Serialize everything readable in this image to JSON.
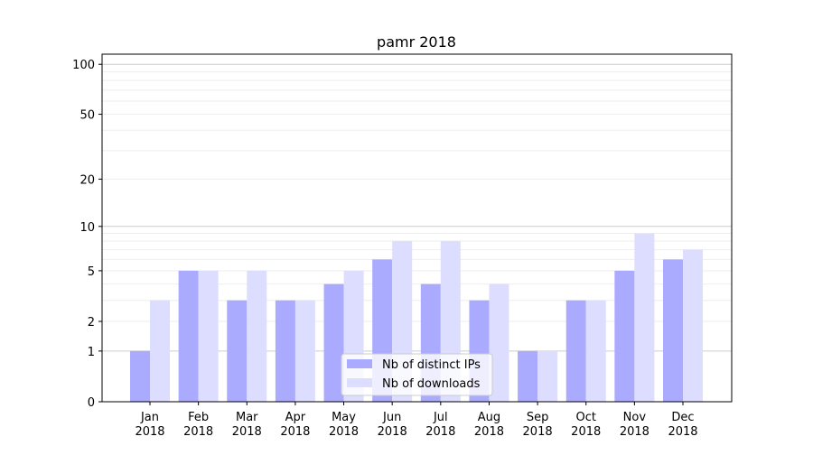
{
  "chart_data": {
    "type": "bar",
    "title": "pamr 2018",
    "xlabel": "",
    "ylabel": "",
    "yscale": "log(1+y)",
    "ylim": [
      0,
      115
    ],
    "yticks": [
      0,
      1,
      2,
      5,
      10,
      20,
      50,
      100
    ],
    "grid": true,
    "legend_placement": "bottom-center",
    "categories": [
      "Jan\n2018",
      "Feb\n2018",
      "Mar\n2018",
      "Apr\n2018",
      "May\n2018",
      "Jun\n2018",
      "Jul\n2018",
      "Aug\n2018",
      "Sep\n2018",
      "Oct\n2018",
      "Nov\n2018",
      "Dec\n2018"
    ],
    "series": [
      {
        "name": "Nb of distinct IPs",
        "color": "#aaaaff",
        "values": [
          1,
          5,
          3,
          3,
          4,
          6,
          4,
          3,
          1,
          3,
          5,
          6
        ]
      },
      {
        "name": "Nb of downloads",
        "color": "#ddddff",
        "values": [
          3,
          5,
          5,
          3,
          5,
          8,
          8,
          4,
          1,
          3,
          9,
          7
        ]
      }
    ]
  }
}
